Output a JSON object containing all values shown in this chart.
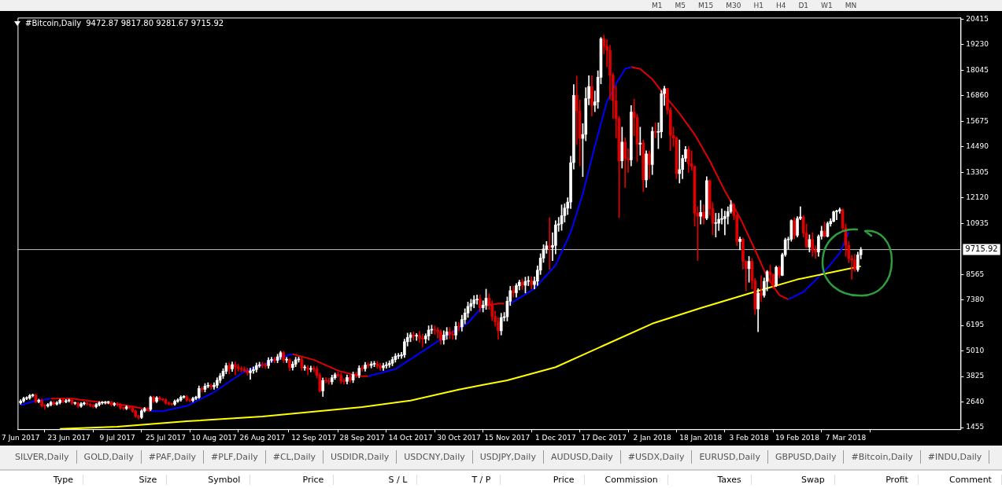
{
  "chart_data": [
    {
      "type": "candlestick",
      "title": "#Bitcoin,Daily",
      "subtitle": "9472.87 9817.80 9281.67 9715.92",
      "x": [
        "2017-06-07",
        "2017-06-08",
        "2017-06-09",
        "2017-06-10",
        "2017-06-11",
        "2017-06-12",
        "2017-06-13",
        "2017-06-14",
        "2017-06-15",
        "2017-06-16",
        "2017-06-17",
        "2017-06-18",
        "2017-06-19",
        "2017-06-20",
        "2017-06-21",
        "2017-06-22",
        "2017-06-23",
        "2017-06-24",
        "2017-06-25",
        "2017-06-26",
        "2017-06-27",
        "2017-06-28",
        "2017-06-29",
        "2017-06-30",
        "2017-07-01",
        "2017-07-02",
        "2017-07-03",
        "2017-07-04",
        "2017-07-05",
        "2017-07-06",
        "2017-07-07",
        "2017-07-08",
        "2017-07-09",
        "2017-07-10",
        "2017-07-11",
        "2017-07-12",
        "2017-07-13",
        "2017-07-14",
        "2017-07-15",
        "2017-07-16",
        "2017-07-17",
        "2017-07-18",
        "2017-07-19",
        "2017-07-20",
        "2017-07-21",
        "2017-07-22",
        "2017-07-23",
        "2017-07-24",
        "2017-07-25",
        "2017-07-26",
        "2017-07-27",
        "2017-07-28",
        "2017-07-29",
        "2017-07-30",
        "2017-07-31",
        "2017-08-01",
        "2017-08-02",
        "2017-08-03",
        "2017-08-04",
        "2017-08-05",
        "2017-08-06",
        "2017-08-07",
        "2017-08-08",
        "2017-08-09",
        "2017-08-10",
        "2017-08-11",
        "2017-08-12",
        "2017-08-13",
        "2017-08-14",
        "2017-08-15",
        "2017-08-16",
        "2017-08-17",
        "2017-08-18",
        "2017-08-19",
        "2017-08-20",
        "2017-08-21",
        "2017-08-22",
        "2017-08-23",
        "2017-08-24",
        "2017-08-25",
        "2017-08-26",
        "2017-08-27",
        "2017-08-28",
        "2017-08-29",
        "2017-08-30",
        "2017-08-31",
        "2017-09-01",
        "2017-09-02",
        "2017-09-03",
        "2017-09-04",
        "2017-09-05",
        "2017-09-06",
        "2017-09-07",
        "2017-09-08",
        "2017-09-09",
        "2017-09-10",
        "2017-09-11",
        "2017-09-12",
        "2017-09-13",
        "2017-09-14",
        "2017-09-15",
        "2017-09-16",
        "2017-09-17",
        "2017-09-18",
        "2017-09-19",
        "2017-09-20",
        "2017-09-21",
        "2017-09-22",
        "2017-09-23",
        "2017-09-24",
        "2017-09-25",
        "2017-09-26",
        "2017-09-27",
        "2017-09-28",
        "2017-09-29",
        "2017-09-30",
        "2017-10-01",
        "2017-10-02",
        "2017-10-03",
        "2017-10-04",
        "2017-10-05",
        "2017-10-06",
        "2017-10-07",
        "2017-10-08",
        "2017-10-09",
        "2017-10-10",
        "2017-10-11",
        "2017-10-12",
        "2017-10-13",
        "2017-10-14",
        "2017-10-15",
        "2017-10-16",
        "2017-10-17",
        "2017-10-18",
        "2017-10-19",
        "2017-10-20",
        "2017-10-21",
        "2017-10-22",
        "2017-10-23",
        "2017-10-24",
        "2017-10-25",
        "2017-10-26",
        "2017-10-27",
        "2017-10-28",
        "2017-10-29",
        "2017-10-30",
        "2017-10-31",
        "2017-11-01",
        "2017-11-02",
        "2017-11-03",
        "2017-11-04",
        "2017-11-05",
        "2017-11-06",
        "2017-11-07",
        "2017-11-08",
        "2017-11-09",
        "2017-11-10",
        "2017-11-11",
        "2017-11-12",
        "2017-11-13",
        "2017-11-14",
        "2017-11-15",
        "2017-11-16",
        "2017-11-17",
        "2017-11-18",
        "2017-11-19",
        "2017-11-20",
        "2017-11-21",
        "2017-11-22",
        "2017-11-23",
        "2017-11-24",
        "2017-11-25",
        "2017-11-26",
        "2017-11-27",
        "2017-11-28",
        "2017-11-29",
        "2017-11-30",
        "2017-12-01",
        "2017-12-02",
        "2017-12-03",
        "2017-12-04",
        "2017-12-05",
        "2017-12-06",
        "2017-12-07",
        "2017-12-08",
        "2017-12-09",
        "2017-12-10",
        "2017-12-11",
        "2017-12-12",
        "2017-12-13",
        "2017-12-14",
        "2017-12-15",
        "2017-12-16",
        "2017-12-17",
        "2017-12-18",
        "2017-12-19",
        "2017-12-20",
        "2017-12-21",
        "2017-12-22",
        "2017-12-23",
        "2017-12-24",
        "2017-12-25",
        "2017-12-26",
        "2017-12-27",
        "2017-12-28",
        "2017-12-29",
        "2017-12-30",
        "2017-12-31",
        "2018-01-01",
        "2018-01-02",
        "2018-01-03",
        "2018-01-04",
        "2018-01-05",
        "2018-01-06",
        "2018-01-07",
        "2018-01-08",
        "2018-01-09",
        "2018-01-10",
        "2018-01-11",
        "2018-01-12",
        "2018-01-13",
        "2018-01-14",
        "2018-01-15",
        "2018-01-16",
        "2018-01-17",
        "2018-01-18",
        "2018-01-19",
        "2018-01-20",
        "2018-01-21",
        "2018-01-22",
        "2018-01-23",
        "2018-01-24",
        "2018-01-25",
        "2018-01-26",
        "2018-01-27",
        "2018-01-28",
        "2018-01-29",
        "2018-01-30",
        "2018-01-31",
        "2018-02-01",
        "2018-02-02",
        "2018-02-03",
        "2018-02-04",
        "2018-02-05",
        "2018-02-06",
        "2018-02-07",
        "2018-02-08",
        "2018-02-09",
        "2018-02-10",
        "2018-02-11",
        "2018-02-12",
        "2018-02-13",
        "2018-02-14",
        "2018-02-15",
        "2018-02-16",
        "2018-02-17",
        "2018-02-18",
        "2018-02-19",
        "2018-02-20",
        "2018-02-21",
        "2018-02-22",
        "2018-02-23",
        "2018-02-24",
        "2018-02-25",
        "2018-02-26",
        "2018-02-27",
        "2018-02-28",
        "2018-03-01",
        "2018-03-02",
        "2018-03-03",
        "2018-03-04",
        "2018-03-05",
        "2018-03-06",
        "2018-03-07",
        "2018-03-08",
        "2018-03-09",
        "2018-03-10",
        "2018-03-11",
        "2018-03-12"
      ],
      "ohlc": [
        [
          2600,
          2750,
          2540,
          2690
        ],
        [
          2690,
          2870,
          2630,
          2810
        ],
        [
          2810,
          2890,
          2750,
          2830
        ],
        [
          2830,
          3000,
          2770,
          2940
        ],
        [
          2940,
          3020,
          2880,
          2960
        ],
        [
          2960,
          3020,
          2600,
          2660
        ],
        [
          2660,
          2780,
          2600,
          2720
        ],
        [
          2720,
          2780,
          2410,
          2470
        ],
        [
          2470,
          2530,
          2300,
          2460
        ],
        [
          2460,
          2580,
          2400,
          2520
        ],
        [
          2520,
          2680,
          2460,
          2620
        ],
        [
          2620,
          2680,
          2490,
          2550
        ],
        [
          2550,
          2670,
          2490,
          2610
        ],
        [
          2610,
          2780,
          2550,
          2720
        ],
        [
          2720,
          2780,
          2600,
          2660
        ],
        [
          2660,
          2760,
          2600,
          2700
        ],
        [
          2700,
          2780,
          2640,
          2720
        ],
        [
          2720,
          2780,
          2520,
          2580
        ],
        [
          2580,
          2640,
          2520,
          2590
        ],
        [
          2590,
          2640,
          2390,
          2450
        ],
        [
          2450,
          2620,
          2390,
          2560
        ],
        [
          2560,
          2640,
          2500,
          2580
        ],
        [
          2580,
          2640,
          2480,
          2540
        ],
        [
          2540,
          2600,
          2420,
          2480
        ],
        [
          2480,
          2540,
          2370,
          2430
        ],
        [
          2430,
          2580,
          2370,
          2520
        ],
        [
          2520,
          2660,
          2460,
          2600
        ],
        [
          2600,
          2670,
          2540,
          2610
        ],
        [
          2610,
          2680,
          2550,
          2620
        ],
        [
          2620,
          2680,
          2560,
          2630
        ],
        [
          2630,
          2680,
          2460,
          2520
        ],
        [
          2520,
          2620,
          2460,
          2560
        ],
        [
          2560,
          2620,
          2460,
          2520
        ],
        [
          2520,
          2580,
          2310,
          2370
        ],
        [
          2370,
          2400,
          2280,
          2340
        ],
        [
          2340,
          2470,
          2280,
          2410
        ],
        [
          2410,
          2470,
          2320,
          2380
        ],
        [
          2380,
          2440,
          2160,
          2220
        ],
        [
          2220,
          2280,
          1920,
          1980
        ],
        [
          1980,
          2040,
          1850,
          1930
        ],
        [
          1930,
          2290,
          1870,
          2230
        ],
        [
          2230,
          2400,
          2170,
          2340
        ],
        [
          2340,
          2400,
          2240,
          2300
        ],
        [
          2300,
          2920,
          2240,
          2860
        ],
        [
          2860,
          2920,
          2610,
          2670
        ],
        [
          2670,
          2900,
          2610,
          2840
        ],
        [
          2840,
          2900,
          2720,
          2780
        ],
        [
          2780,
          2810,
          2690,
          2750
        ],
        [
          2750,
          2810,
          2530,
          2590
        ],
        [
          2590,
          2650,
          2500,
          2560
        ],
        [
          2560,
          2600,
          2480,
          2540
        ],
        [
          2540,
          2740,
          2480,
          2680
        ],
        [
          2680,
          2800,
          2620,
          2740
        ],
        [
          2740,
          2930,
          2680,
          2870
        ],
        [
          2870,
          2940,
          2810,
          2880
        ],
        [
          2880,
          2940,
          2670,
          2730
        ],
        [
          2730,
          2790,
          2650,
          2710
        ],
        [
          2710,
          2870,
          2650,
          2810
        ],
        [
          2810,
          2920,
          2750,
          2860
        ],
        [
          2860,
          3390,
          2800,
          3270
        ],
        [
          3270,
          3350,
          3110,
          3230
        ],
        [
          3230,
          3500,
          3110,
          3380
        ],
        [
          3380,
          3540,
          3300,
          3420
        ],
        [
          3420,
          3470,
          3230,
          3350
        ],
        [
          3350,
          3540,
          3230,
          3420
        ],
        [
          3420,
          3770,
          3300,
          3650
        ],
        [
          3650,
          3970,
          3530,
          3850
        ],
        [
          3850,
          4190,
          3730,
          4070
        ],
        [
          4070,
          4450,
          3950,
          4330
        ],
        [
          4330,
          4450,
          3950,
          4180
        ],
        [
          4180,
          4500,
          4060,
          4380
        ],
        [
          4380,
          4500,
          3900,
          4280
        ],
        [
          4280,
          4400,
          4070,
          4190
        ],
        [
          4190,
          4280,
          4040,
          4160
        ],
        [
          4160,
          4280,
          4040,
          4090
        ],
        [
          4090,
          4210,
          3880,
          4000
        ],
        [
          4000,
          4210,
          3700,
          4090
        ],
        [
          4090,
          4270,
          3970,
          4150
        ],
        [
          4150,
          4450,
          4030,
          4330
        ],
        [
          4330,
          4490,
          4250,
          4370
        ],
        [
          4370,
          4490,
          4230,
          4350
        ],
        [
          4350,
          4450,
          4210,
          4330
        ],
        [
          4330,
          4700,
          4210,
          4580
        ],
        [
          4580,
          4720,
          4480,
          4600
        ],
        [
          4600,
          4720,
          4460,
          4580
        ],
        [
          4580,
          4860,
          4460,
          4740
        ],
        [
          4740,
          5000,
          4620,
          4930
        ],
        [
          4930,
          5000,
          4470,
          4590
        ],
        [
          4590,
          4720,
          4470,
          4600
        ],
        [
          4600,
          4660,
          4100,
          4240
        ],
        [
          4240,
          4520,
          4120,
          4400
        ],
        [
          4400,
          4720,
          4280,
          4600
        ],
        [
          4600,
          4730,
          4490,
          4610
        ],
        [
          4610,
          4730,
          4110,
          4230
        ],
        [
          4230,
          4350,
          4110,
          4230
        ],
        [
          4230,
          4350,
          3900,
          4160
        ],
        [
          4160,
          4310,
          4040,
          4190
        ],
        [
          4190,
          4310,
          4050,
          4170
        ],
        [
          4170,
          4290,
          3760,
          3880
        ],
        [
          3880,
          3990,
          3100,
          3160
        ],
        [
          3160,
          3760,
          2900,
          3640
        ],
        [
          3640,
          3780,
          3520,
          3630
        ],
        [
          3630,
          3750,
          3460,
          3580
        ],
        [
          3580,
          3890,
          3460,
          3770
        ],
        [
          3770,
          3990,
          3690,
          3910
        ],
        [
          3910,
          4030,
          3790,
          3880
        ],
        [
          3880,
          3990,
          3500,
          3610
        ],
        [
          3610,
          3730,
          3480,
          3600
        ],
        [
          3600,
          3900,
          3480,
          3780
        ],
        [
          3780,
          3900,
          3540,
          3660
        ],
        [
          3660,
          4040,
          3540,
          3920
        ],
        [
          3920,
          4040,
          3770,
          3890
        ],
        [
          3890,
          4330,
          3770,
          4210
        ],
        [
          4210,
          4330,
          4070,
          4190
        ],
        [
          4190,
          4480,
          4070,
          4360
        ],
        [
          4360,
          4460,
          4220,
          4340
        ],
        [
          4340,
          4520,
          4220,
          4400
        ],
        [
          4400,
          4530,
          4280,
          4410
        ],
        [
          4410,
          4530,
          4200,
          4320
        ],
        [
          4320,
          4440,
          4110,
          4230
        ],
        [
          4230,
          4450,
          4110,
          4330
        ],
        [
          4330,
          4490,
          4210,
          4370
        ],
        [
          4370,
          4560,
          4250,
          4440
        ],
        [
          4440,
          4730,
          4320,
          4610
        ],
        [
          4610,
          4890,
          4490,
          4770
        ],
        [
          4770,
          4900,
          4650,
          4780
        ],
        [
          4780,
          4950,
          4660,
          4830
        ],
        [
          4830,
          5560,
          4710,
          5440
        ],
        [
          5440,
          5840,
          5240,
          5640
        ],
        [
          5640,
          5860,
          5440,
          5760
        ],
        [
          5760,
          5900,
          5500,
          5700
        ],
        [
          5700,
          5820,
          5500,
          5720
        ],
        [
          5720,
          5920,
          5400,
          5600
        ],
        [
          5600,
          5800,
          5200,
          5570
        ],
        [
          5570,
          5810,
          5370,
          5710
        ],
        [
          5710,
          6180,
          5510,
          5980
        ],
        [
          5980,
          6210,
          5810,
          6010
        ],
        [
          6010,
          6180,
          5780,
          5980
        ],
        [
          5980,
          6100,
          5600,
          5900
        ],
        [
          5900,
          6000,
          5320,
          5520
        ],
        [
          5520,
          5950,
          5320,
          5750
        ],
        [
          5750,
          6100,
          5550,
          5900
        ],
        [
          5900,
          6100,
          5580,
          5780
        ],
        [
          5780,
          5950,
          5550,
          5750
        ],
        [
          5750,
          6350,
          5550,
          6150
        ],
        [
          6150,
          6330,
          5930,
          6130
        ],
        [
          6130,
          6670,
          5930,
          6470
        ],
        [
          6470,
          6970,
          6270,
          6770
        ],
        [
          6770,
          7280,
          6570,
          7080
        ],
        [
          7080,
          7410,
          6880,
          7210
        ],
        [
          7210,
          7580,
          7010,
          7380
        ],
        [
          7380,
          7610,
          7180,
          7410
        ],
        [
          7410,
          7610,
          6820,
          7020
        ],
        [
          7020,
          7340,
          6820,
          7140
        ],
        [
          7140,
          7880,
          6940,
          7460
        ],
        [
          7460,
          7660,
          6940,
          7140
        ],
        [
          7140,
          7340,
          6420,
          6620
        ],
        [
          6620,
          6860,
          6160,
          6360
        ],
        [
          6360,
          6560,
          5550,
          5950
        ],
        [
          5950,
          6760,
          5750,
          6560
        ],
        [
          6560,
          6800,
          6400,
          6600
        ],
        [
          6600,
          7520,
          6400,
          7320
        ],
        [
          7320,
          8010,
          7120,
          7810
        ],
        [
          7810,
          8010,
          7510,
          7710
        ],
        [
          7710,
          8140,
          7510,
          8040
        ],
        [
          8040,
          8300,
          7840,
          8200
        ],
        [
          8200,
          8350,
          7860,
          8060
        ],
        [
          8060,
          8440,
          7700,
          8240
        ],
        [
          8240,
          8470,
          8040,
          8270
        ],
        [
          8270,
          8470,
          7890,
          8090
        ],
        [
          8090,
          8450,
          7890,
          8250
        ],
        [
          8250,
          8960,
          8050,
          8760
        ],
        [
          8760,
          9520,
          8560,
          9320
        ],
        [
          9320,
          9940,
          9120,
          9740
        ],
        [
          9740,
          10090,
          9540,
          9890
        ],
        [
          9890,
          11200,
          8800,
          9820
        ],
        [
          9820,
          10500,
          9200,
          9910
        ],
        [
          9910,
          11060,
          9510,
          10860
        ],
        [
          10860,
          11210,
          10560,
          10910
        ],
        [
          10910,
          11790,
          10610,
          11290
        ],
        [
          11290,
          11840,
          10990,
          11640
        ],
        [
          11640,
          12120,
          11340,
          11920
        ],
        [
          11920,
          14050,
          11620,
          13750
        ],
        [
          13750,
          17370,
          13450,
          16870
        ],
        [
          16870,
          17770,
          14600,
          16150
        ],
        [
          16150,
          16650,
          13600,
          14870
        ],
        [
          14870,
          15560,
          13100,
          15060
        ],
        [
          15060,
          17230,
          14760,
          16730
        ],
        [
          16730,
          17780,
          16430,
          17280
        ],
        [
          17280,
          17780,
          15910,
          16410
        ],
        [
          16410,
          17070,
          16110,
          16570
        ],
        [
          16570,
          18010,
          16270,
          17710
        ],
        [
          17710,
          19560,
          17410,
          19500
        ],
        [
          19500,
          19660,
          18800,
          19140
        ],
        [
          19140,
          19450,
          18200,
          18960
        ],
        [
          18960,
          19200,
          16700,
          17800
        ],
        [
          17800,
          17900,
          15800,
          16620
        ],
        [
          16620,
          17300,
          14900,
          15800
        ],
        [
          15800,
          15900,
          11200,
          13830
        ],
        [
          13830,
          15400,
          13500,
          14700
        ],
        [
          14700,
          14900,
          12600,
          13930
        ],
        [
          13930,
          14400,
          13300,
          13880
        ],
        [
          13880,
          16400,
          13600,
          16100
        ],
        [
          16100,
          16700,
          15000,
          15840
        ],
        [
          15840,
          16000,
          13800,
          14610
        ],
        [
          14610,
          15400,
          14100,
          14660
        ],
        [
          14660,
          14800,
          12400,
          12950
        ],
        [
          12950,
          14300,
          12600,
          14160
        ],
        [
          14160,
          14300,
          13000,
          13660
        ],
        [
          13660,
          15400,
          13200,
          15200
        ],
        [
          15200,
          15600,
          14900,
          15160
        ],
        [
          15160,
          15600,
          14400,
          15180
        ],
        [
          15180,
          17100,
          14900,
          16950
        ],
        [
          16950,
          17300,
          16400,
          17180
        ],
        [
          17180,
          17200,
          16000,
          16190
        ],
        [
          16190,
          16300,
          14300,
          15010
        ],
        [
          15010,
          15400,
          14500,
          14890
        ],
        [
          14890,
          14950,
          13000,
          13240
        ],
        [
          13240,
          14800,
          12800,
          13430
        ],
        [
          13430,
          14100,
          13000,
          13950
        ],
        [
          13950,
          14500,
          13800,
          14360
        ],
        [
          14360,
          14500,
          13300,
          13700
        ],
        [
          13700,
          14300,
          13400,
          13580
        ],
        [
          13580,
          13600,
          10800,
          11410
        ],
        [
          11410,
          11700,
          9200,
          11260
        ],
        [
          11260,
          12000,
          10900,
          11440
        ],
        [
          11440,
          11800,
          10900,
          11170
        ],
        [
          11170,
          13100,
          11100,
          12920
        ],
        [
          12920,
          12950,
          11300,
          11610
        ],
        [
          11610,
          11900,
          10400,
          10930
        ],
        [
          10930,
          11400,
          10300,
          10940
        ],
        [
          10940,
          11400,
          10600,
          11120
        ],
        [
          11120,
          11600,
          10900,
          11150
        ],
        [
          11150,
          11500,
          10400,
          11260
        ],
        [
          11260,
          11700,
          10900,
          11480
        ],
        [
          11480,
          12000,
          11400,
          11790
        ],
        [
          11790,
          11850,
          11100,
          11300
        ],
        [
          11300,
          11350,
          9900,
          10090
        ],
        [
          10090,
          10300,
          9700,
          10200
        ],
        [
          10200,
          10250,
          8800,
          9170
        ],
        [
          9170,
          9200,
          7800,
          8830
        ],
        [
          8830,
          9400,
          8200,
          9170
        ],
        [
          9170,
          9300,
          7900,
          8280
        ],
        [
          8280,
          8380,
          6700,
          6960
        ],
        [
          6960,
          7900,
          5900,
          7700
        ],
        [
          7700,
          8500,
          7300,
          7590
        ],
        [
          7590,
          8400,
          7500,
          8240
        ],
        [
          8240,
          8750,
          7800,
          8690
        ],
        [
          8690,
          9000,
          8200,
          8550
        ],
        [
          8550,
          8600,
          7900,
          8070
        ],
        [
          8070,
          8950,
          8000,
          8890
        ],
        [
          8890,
          8950,
          8400,
          8520
        ],
        [
          8520,
          9550,
          8500,
          9480
        ],
        [
          9480,
          10250,
          9400,
          10170
        ],
        [
          10170,
          10300,
          9750,
          10200
        ],
        [
          10200,
          11100,
          10100,
          11060
        ],
        [
          11060,
          11200,
          10200,
          10380
        ],
        [
          10380,
          11250,
          10300,
          11160
        ],
        [
          11160,
          11700,
          11100,
          11230
        ],
        [
          11230,
          11300,
          10300,
          10480
        ],
        [
          10480,
          10900,
          9800,
          9830
        ],
        [
          9830,
          10400,
          9600,
          10180
        ],
        [
          10180,
          10500,
          9400,
          9690
        ],
        [
          9690,
          9900,
          9300,
          9600
        ],
        [
          9600,
          10400,
          9400,
          10330
        ],
        [
          10330,
          10800,
          10200,
          10570
        ],
        [
          10570,
          11000,
          10300,
          10330
        ],
        [
          10330,
          11000,
          10300,
          10920
        ],
        [
          10920,
          11150,
          10800,
          11030
        ],
        [
          11030,
          11500,
          11000,
          11470
        ],
        [
          11470,
          11550,
          11100,
          11510
        ],
        [
          11510,
          11650,
          11400,
          11570
        ],
        [
          11570,
          11600,
          10600,
          10720
        ],
        [
          10720,
          10900,
          9400,
          9910
        ],
        [
          9910,
          10100,
          9100,
          9300
        ],
        [
          9300,
          9450,
          8350,
          9230
        ],
        [
          9230,
          9500,
          8700,
          8780
        ],
        [
          8780,
          9600,
          8700,
          9470
        ],
        [
          9472.87,
          9817.8,
          9281.67,
          9715.92
        ]
      ],
      "series": [
        {
          "type": "line",
          "color": "#ffff00",
          "x": [
            "2017-06-20",
            "2017-07-09",
            "2017-08-01",
            "2017-08-26",
            "2017-09-28",
            "2017-10-14",
            "2017-10-30",
            "2017-11-07",
            "2017-11-15",
            "2017-12-01",
            "2017-12-17",
            "2018-01-02",
            "2018-01-18",
            "2018-02-03",
            "2018-02-19",
            "2018-03-07",
            "2018-03-12"
          ],
          "values": [
            1400,
            1500,
            1750,
            1970,
            2410,
            2710,
            3220,
            3440,
            3650,
            4260,
            5270,
            6280,
            7000,
            7680,
            8330,
            8800,
            8940
          ]
        },
        {
          "type": "line",
          "color": "#0000ff",
          "x": [
            "2017-06-07",
            "2017-06-12",
            "2017-06-17",
            "2017-06-25",
            "2017-07-20",
            "2017-07-24",
            "2017-08-01",
            "2017-08-10",
            "2017-08-20",
            "2017-08-28",
            "2017-09-03",
            "2017-09-05",
            "2017-09-20",
            "2017-09-30",
            "2017-10-09",
            "2017-10-17",
            "2017-10-25",
            "2017-11-02",
            "2017-11-07",
            "2017-11-12",
            "2017-11-16",
            "2017-11-24",
            "2017-12-01",
            "2017-12-06",
            "2017-12-10",
            "2017-12-14",
            "2017-12-18",
            "2017-12-21",
            "2017-12-24",
            "2017-12-26",
            "2018-01-20",
            "2018-02-16",
            "2018-02-21",
            "2018-02-25",
            "2018-03-01",
            "2018-03-05",
            "2018-03-08"
          ],
          "values": [
            2500,
            2700,
            2800,
            null,
            2220,
            2220,
            2460,
            3100,
            4060,
            4470,
            4800,
            4860,
            null,
            3840,
            4170,
            4900,
            5640,
            6310,
            7110,
            null,
            7210,
            7900,
            8990,
            10520,
            12300,
            14520,
            16580,
            17410,
            18100,
            18190,
            null,
            7410,
            7750,
            8300,
            8870,
            9550,
            10520
          ]
        },
        {
          "type": "line",
          "color": "#e00000",
          "x": [
            "2017-06-17",
            "2017-06-24",
            "2017-07-01",
            "2017-07-10",
            "2017-07-16",
            "2017-07-20",
            "2017-08-20",
            "2017-09-05",
            "2017-09-12",
            "2017-09-20",
            "2017-09-27",
            "2017-09-30",
            "2017-10-20",
            "2017-11-08",
            "2017-11-12",
            "2017-11-14",
            "2017-12-01",
            "2017-12-26",
            "2017-12-29",
            "2018-01-02",
            "2018-01-07",
            "2018-01-11",
            "2018-01-16",
            "2018-01-21",
            "2018-01-26",
            "2018-01-31",
            "2018-02-05",
            "2018-02-09",
            "2018-02-13",
            "2018-02-16"
          ],
          "values": [
            2800,
            2800,
            2670,
            2530,
            2380,
            2220,
            null,
            4860,
            4600,
            4100,
            3840,
            3840,
            null,
            7110,
            7210,
            7210,
            null,
            18190,
            18100,
            17620,
            16720,
            16030,
            15060,
            13840,
            12440,
            11200,
            9700,
            8440,
            7610,
            7410
          ]
        }
      ],
      "xlim": [
        "2017-06-06",
        "2018-04-14"
      ],
      "xticks": [
        {
          "value": "2017-06-07",
          "label": "7 Jun 2017"
        },
        {
          "value": "2017-06-23",
          "label": "23 Jun 2017"
        },
        {
          "value": "2017-07-09",
          "label": "9 Jul 2017"
        },
        {
          "value": "2017-07-25",
          "label": "25 Jul 2017"
        },
        {
          "value": "2017-08-10",
          "label": "10 Aug 2017"
        },
        {
          "value": "2017-08-26",
          "label": "26 Aug 2017"
        },
        {
          "value": "2017-09-12",
          "label": "12 Sep 2017"
        },
        {
          "value": "2017-09-28",
          "label": "28 Sep 2017"
        },
        {
          "value": "2017-10-14",
          "label": "14 Oct 2017"
        },
        {
          "value": "2017-10-30",
          "label": "30 Oct 2017"
        },
        {
          "value": "2017-11-15",
          "label": "15 Nov 2017"
        },
        {
          "value": "2017-12-01",
          "label": "1 Dec 2017"
        },
        {
          "value": "2017-12-17",
          "label": "17 Dec 2017"
        },
        {
          "value": "2018-01-02",
          "label": "2 Jan 2018"
        },
        {
          "value": "2018-01-18",
          "label": "18 Jan 2018"
        },
        {
          "value": "2018-02-03",
          "label": "3 Feb 2018"
        },
        {
          "value": "2018-02-19",
          "label": "19 Feb 2018"
        },
        {
          "value": "2018-03-07",
          "label": "7 Mar 2018"
        }
      ],
      "ylim": [
        1380,
        20480
      ],
      "yticks": [
        20415,
        19230,
        18045,
        16860,
        15675,
        14490,
        13305,
        12120,
        10935,
        8565,
        7380,
        6195,
        5010,
        3825,
        2640,
        1455
      ],
      "ref_lines": [
        {
          "axis": "y",
          "value": 9715.92,
          "label": "9715.92",
          "color": "#c0c0c0"
        }
      ]
    },
    {
      "type": "other",
      "annotations": [
        "SILVER,Daily",
        "GOLD,Daily",
        "#PAF,Daily",
        "#PLF,Daily",
        "#CL,Daily",
        "USDIDR,Daily",
        "USDCNY,Daily",
        "USDJPY,Daily",
        "AUDUSD,Daily",
        "#USDX,Daily",
        "EURUSD,Daily",
        "GBPUSD,Daily",
        "#Bitcoin,Daily",
        "#INDU,Daily"
      ]
    },
    {
      "type": "other",
      "annotations": [
        "Type",
        "Size",
        "Symbol",
        "Price",
        "S / L",
        "T / P",
        "Price",
        "Commission",
        "Taxes",
        "Swap",
        "Profit",
        "Comment"
      ]
    },
    {
      "type": "other",
      "annotations": [
        "M1",
        "M5",
        "M15",
        "M30",
        "H1",
        "H4",
        "D1",
        "W1",
        "MN"
      ]
    }
  ]
}
